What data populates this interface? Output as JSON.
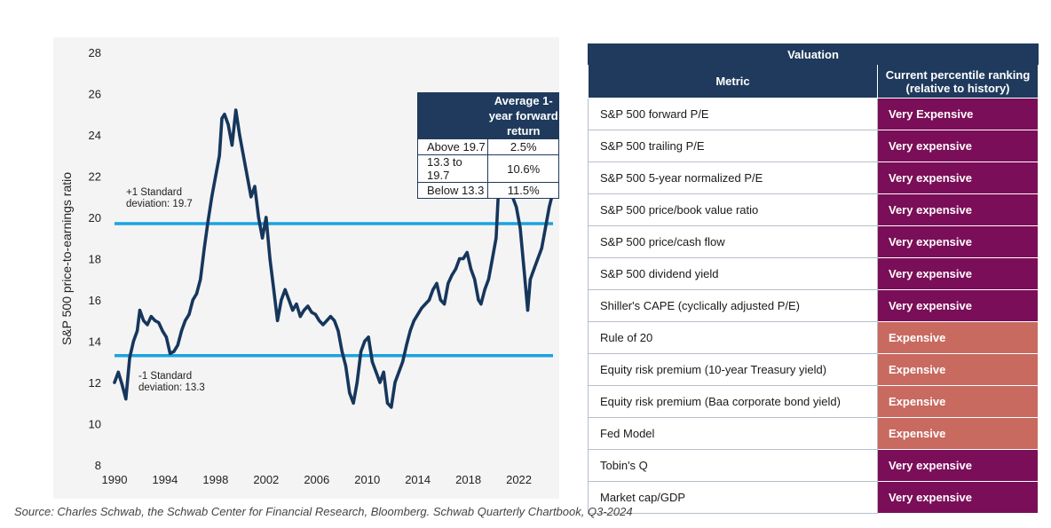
{
  "chart_data": {
    "type": "line",
    "ylabel": "S&P 500 price-to-earnings ratio",
    "xlabel": "",
    "ylim": [
      8,
      28
    ],
    "xlim": [
      1990,
      2024.7
    ],
    "xticks": [
      "1990",
      "1994",
      "1998",
      "2002",
      "2006",
      "2010",
      "2014",
      "2018",
      "2022"
    ],
    "yticks": [
      "8",
      "10",
      "12",
      "14",
      "16",
      "18",
      "20",
      "22",
      "24",
      "26",
      "28"
    ],
    "series": [
      {
        "color": "#16365c",
        "x": [
          1990.0,
          1990.3,
          1990.6,
          1990.9,
          1991.2,
          1991.5,
          1991.8,
          1992.0,
          1992.3,
          1992.6,
          1992.9,
          1993.2,
          1993.5,
          1993.8,
          1994.1,
          1994.4,
          1994.7,
          1995.0,
          1995.3,
          1995.6,
          1995.9,
          1996.2,
          1996.5,
          1996.8,
          1997.1,
          1997.4,
          1997.7,
          1998.0,
          1998.3,
          1998.5,
          1998.7,
          1999.0,
          1999.3,
          1999.6,
          1999.9,
          2000.2,
          2000.5,
          2000.8,
          2001.1,
          2001.4,
          2001.7,
          2002.0,
          2002.3,
          2002.6,
          2002.9,
          2003.2,
          2003.5,
          2003.8,
          2004.1,
          2004.4,
          2004.7,
          2005.0,
          2005.3,
          2005.6,
          2005.9,
          2006.2,
          2006.5,
          2006.8,
          2007.1,
          2007.4,
          2007.7,
          2008.0,
          2008.3,
          2008.6,
          2008.9,
          2009.2,
          2009.5,
          2009.8,
          2010.1,
          2010.4,
          2010.7,
          2011.0,
          2011.3,
          2011.6,
          2011.9,
          2012.2,
          2012.5,
          2012.8,
          2013.1,
          2013.4,
          2013.7,
          2014.0,
          2014.3,
          2014.6,
          2014.9,
          2015.2,
          2015.5,
          2015.8,
          2016.1,
          2016.4,
          2016.7,
          2017.0,
          2017.3,
          2017.6,
          2017.9,
          2018.2,
          2018.5,
          2018.8,
          2019.0,
          2019.3,
          2019.6,
          2019.9,
          2020.2,
          2020.4,
          2020.6,
          2020.9,
          2021.2,
          2021.5,
          2021.8,
          2022.1,
          2022.4,
          2022.7,
          2022.9,
          2023.2,
          2023.5,
          2023.8,
          2024.1,
          2024.4,
          2024.6
        ],
        "values": [
          12.0,
          12.5,
          11.9,
          11.2,
          13.2,
          14.0,
          14.5,
          15.5,
          15.0,
          14.8,
          15.2,
          15.0,
          14.9,
          14.5,
          14.2,
          13.4,
          13.5,
          13.8,
          14.5,
          15.0,
          15.3,
          16.0,
          16.3,
          17.0,
          18.5,
          19.8,
          21.0,
          22.0,
          23.0,
          24.8,
          25.0,
          24.5,
          23.5,
          25.2,
          24.0,
          23.0,
          22.0,
          21.0,
          21.5,
          20.0,
          19.0,
          20.0,
          18.0,
          16.5,
          15.0,
          16.0,
          16.5,
          16.0,
          15.5,
          15.8,
          15.2,
          15.5,
          15.7,
          15.4,
          15.3,
          15.0,
          14.8,
          15.0,
          15.2,
          15.0,
          14.5,
          13.5,
          12.8,
          11.5,
          11.0,
          12.0,
          13.5,
          14.0,
          14.2,
          13.0,
          12.5,
          12.0,
          12.5,
          11.0,
          10.8,
          12.0,
          12.5,
          13.0,
          13.8,
          14.5,
          15.0,
          15.3,
          15.6,
          15.8,
          16.0,
          16.5,
          16.8,
          16.0,
          15.8,
          16.8,
          17.2,
          17.5,
          18.0,
          18.0,
          18.3,
          17.5,
          17.0,
          16.0,
          15.8,
          16.5,
          17.0,
          18.0,
          19.0,
          21.5,
          22.8,
          22.0,
          21.5,
          21.0,
          20.5,
          19.5,
          17.5,
          15.5,
          17.0,
          17.5,
          18.0,
          18.5,
          19.5,
          20.5,
          21.0
        ]
      }
    ],
    "reference_lines": [
      {
        "value": 19.7,
        "color": "#1aa3e0",
        "label": [
          "+1 Standard",
          "deviation:  19.7"
        ]
      },
      {
        "value": 13.3,
        "color": "#1aa3e0",
        "label": [
          "-1 Standard",
          "deviation:  13.3"
        ]
      }
    ],
    "grid": false
  },
  "returns_table": {
    "header": [
      "",
      "Average 1-year forward return"
    ],
    "rows": [
      [
        "Above 19.7",
        "2.5%"
      ],
      [
        "13.3 to 19.7",
        "10.6%"
      ],
      [
        "Below 13.3",
        "11.5%"
      ]
    ]
  },
  "valuation": {
    "title": "Valuation",
    "header_metric": "Metric",
    "header_rank": "Current percentile ranking (relative to history)",
    "colors": {
      "very_expensive": "#7b0e58",
      "expensive": "#c86a60",
      "header": "#1f3a5c"
    },
    "rows": [
      {
        "metric": "S&P 500 forward P/E",
        "rank": "Very Expensive",
        "level": "very_expensive"
      },
      {
        "metric": "S&P 500 trailing P/E",
        "rank": "Very expensive",
        "level": "very_expensive"
      },
      {
        "metric": "S&P 500 5-year normalized P/E",
        "rank": "Very expensive",
        "level": "very_expensive"
      },
      {
        "metric": "S&P 500 price/book value ratio",
        "rank": "Very expensive",
        "level": "very_expensive"
      },
      {
        "metric": "S&P 500 price/cash flow",
        "rank": "Very expensive",
        "level": "very_expensive"
      },
      {
        "metric": "S&P 500 dividend yield",
        "rank": "Very expensive",
        "level": "very_expensive"
      },
      {
        "metric": "Shiller's CAPE (cyclically adjusted P/E)",
        "rank": "Very expensive",
        "level": "very_expensive"
      },
      {
        "metric": "Rule of 20",
        "rank": "Expensive",
        "level": "expensive"
      },
      {
        "metric": "Equity risk premium (10-year Treasury yield)",
        "rank": "Expensive",
        "level": "expensive"
      },
      {
        "metric": "Equity risk premium (Baa corporate bond yield)",
        "rank": "Expensive",
        "level": "expensive"
      },
      {
        "metric": "Fed Model",
        "rank": "Expensive",
        "level": "expensive"
      },
      {
        "metric": "Tobin's Q",
        "rank": "Very expensive",
        "level": "very_expensive"
      },
      {
        "metric": "Market cap/GDP",
        "rank": "Very expensive",
        "level": "very_expensive"
      }
    ]
  },
  "source": "Source: Charles Schwab, the Schwab Center for Financial Research, Bloomberg.  Schwab Quarterly Chartbook, Q3-2024"
}
